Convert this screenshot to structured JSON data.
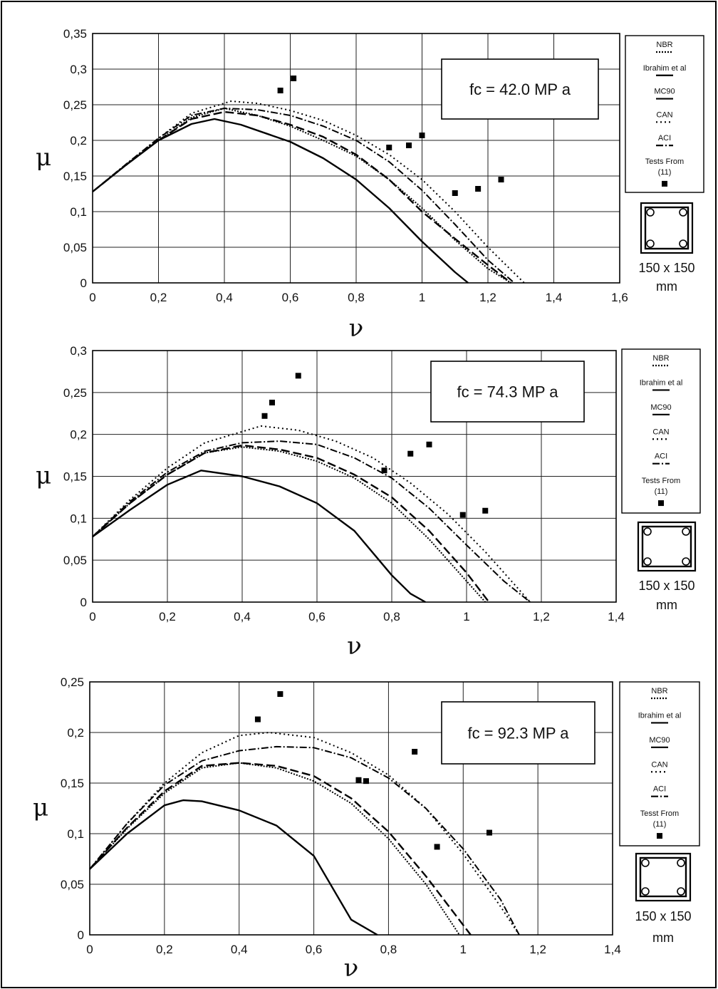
{
  "chart_data": [
    {
      "type": "line",
      "annotation": "fc = 42.0 MP a",
      "xlabel": "ν",
      "ylabel": "μ",
      "xlim": [
        0,
        1.6
      ],
      "ylim": [
        0,
        0.35
      ],
      "xticks": [
        "0",
        "0,2",
        "0,4",
        "0,6",
        "0,8",
        "1",
        "1,2",
        "1,4",
        "1,6"
      ],
      "yticks": [
        "0",
        "0,05",
        "0,1",
        "0,15",
        "0,2",
        "0,25",
        "0,3",
        "0,35"
      ],
      "grid": true,
      "legend_position": "right",
      "legend": [
        "NBR",
        "Ibrahim et al",
        "MC90",
        "CAN",
        "ACI",
        "Tests From",
        "(11)"
      ],
      "section_label": [
        "150 x 150",
        "mm"
      ],
      "series": [
        {
          "key": "nbr",
          "style": "dense-dot",
          "x": [
            0,
            0.1,
            0.2,
            0.3,
            0.4,
            0.5,
            0.6,
            0.7,
            0.8,
            0.9,
            1.0,
            1.1,
            1.2,
            1.27
          ],
          "y": [
            0.128,
            0.165,
            0.2,
            0.232,
            0.245,
            0.235,
            0.22,
            0.2,
            0.178,
            0.145,
            0.105,
            0.06,
            0.02,
            0
          ]
        },
        {
          "key": "ibrahim",
          "style": "dash-dot",
          "x": [
            0,
            0.1,
            0.2,
            0.3,
            0.4,
            0.5,
            0.6,
            0.7,
            0.8,
            0.9,
            1.0,
            1.1,
            1.2,
            1.28
          ],
          "y": [
            0.128,
            0.166,
            0.203,
            0.235,
            0.245,
            0.243,
            0.235,
            0.22,
            0.2,
            0.17,
            0.13,
            0.082,
            0.032,
            0
          ]
        },
        {
          "key": "mc90",
          "style": "solid",
          "x": [
            0,
            0.1,
            0.2,
            0.3,
            0.37,
            0.45,
            0.6,
            0.7,
            0.8,
            0.9,
            1.0,
            1.1,
            1.14
          ],
          "y": [
            0.128,
            0.165,
            0.2,
            0.223,
            0.23,
            0.222,
            0.198,
            0.175,
            0.145,
            0.105,
            0.058,
            0.015,
            0
          ]
        },
        {
          "key": "can",
          "style": "dash",
          "x": [
            0,
            0.1,
            0.2,
            0.3,
            0.4,
            0.5,
            0.6,
            0.7,
            0.8,
            0.9,
            1.0,
            1.1,
            1.2,
            1.27
          ],
          "y": [
            0.128,
            0.165,
            0.2,
            0.23,
            0.24,
            0.235,
            0.222,
            0.205,
            0.18,
            0.145,
            0.1,
            0.062,
            0.025,
            0
          ]
        },
        {
          "key": "aci",
          "style": "dot",
          "x": [
            0,
            0.1,
            0.2,
            0.3,
            0.42,
            0.5,
            0.6,
            0.7,
            0.8,
            0.9,
            1.0,
            1.1,
            1.2,
            1.31
          ],
          "y": [
            0.128,
            0.166,
            0.203,
            0.238,
            0.255,
            0.252,
            0.242,
            0.228,
            0.207,
            0.18,
            0.145,
            0.1,
            0.05,
            0
          ]
        }
      ],
      "tests": {
        "x": [
          0.57,
          0.61,
          0.9,
          0.96,
          1.0,
          1.1,
          1.17,
          1.24
        ],
        "y": [
          0.27,
          0.287,
          0.19,
          0.193,
          0.207,
          0.126,
          0.132,
          0.145
        ]
      }
    },
    {
      "type": "line",
      "annotation": "fc = 74.3 MP a",
      "xlabel": "ν",
      "ylabel": "μ",
      "xlim": [
        0,
        1.4
      ],
      "ylim": [
        0,
        0.3
      ],
      "xticks": [
        "0",
        "0,2",
        "0,4",
        "0,6",
        "0,8",
        "1",
        "1,2",
        "1,4"
      ],
      "yticks": [
        "0",
        "0,05",
        "0,1",
        "0,15",
        "0,2",
        "0,25",
        "0,3"
      ],
      "grid": true,
      "legend_position": "right",
      "legend": [
        "NBR",
        "Ibrahim et al",
        "MC90",
        "CAN",
        "ACI",
        "Tests From",
        "(11)"
      ],
      "section_label": [
        "150 x 150",
        "mm"
      ],
      "series": [
        {
          "key": "nbr",
          "style": "dense-dot",
          "x": [
            0,
            0.1,
            0.2,
            0.3,
            0.4,
            0.5,
            0.6,
            0.7,
            0.8,
            0.9,
            1.0,
            1.05
          ],
          "y": [
            0.078,
            0.118,
            0.152,
            0.178,
            0.185,
            0.18,
            0.168,
            0.148,
            0.118,
            0.075,
            0.025,
            0
          ]
        },
        {
          "key": "ibrahim",
          "style": "dash-dot",
          "x": [
            0,
            0.1,
            0.2,
            0.3,
            0.4,
            0.5,
            0.6,
            0.7,
            0.8,
            0.9,
            1.0,
            1.1,
            1.17
          ],
          "y": [
            0.078,
            0.12,
            0.155,
            0.18,
            0.19,
            0.192,
            0.188,
            0.172,
            0.148,
            0.112,
            0.068,
            0.025,
            0
          ]
        },
        {
          "key": "mc90",
          "style": "solid",
          "x": [
            0,
            0.1,
            0.2,
            0.29,
            0.4,
            0.5,
            0.6,
            0.7,
            0.8,
            0.85,
            0.89
          ],
          "y": [
            0.078,
            0.11,
            0.14,
            0.157,
            0.15,
            0.138,
            0.118,
            0.085,
            0.032,
            0.01,
            0
          ]
        },
        {
          "key": "can",
          "style": "dash",
          "x": [
            0,
            0.1,
            0.2,
            0.3,
            0.4,
            0.5,
            0.6,
            0.7,
            0.8,
            0.9,
            1.0,
            1.06
          ],
          "y": [
            0.078,
            0.118,
            0.152,
            0.178,
            0.187,
            0.182,
            0.172,
            0.152,
            0.125,
            0.085,
            0.035,
            0
          ]
        },
        {
          "key": "aci",
          "style": "dot",
          "x": [
            0,
            0.1,
            0.2,
            0.3,
            0.45,
            0.55,
            0.65,
            0.75,
            0.85,
            0.95,
            1.05,
            1.17
          ],
          "y": [
            0.078,
            0.122,
            0.16,
            0.19,
            0.21,
            0.205,
            0.192,
            0.172,
            0.142,
            0.105,
            0.06,
            0
          ]
        }
      ],
      "tests": {
        "x": [
          0.46,
          0.48,
          0.55,
          0.78,
          0.85,
          0.9,
          0.99,
          1.05
        ],
        "y": [
          0.222,
          0.238,
          0.27,
          0.157,
          0.177,
          0.188,
          0.104,
          0.109
        ]
      }
    },
    {
      "type": "line",
      "annotation": "fc = 92.3 MP a",
      "xlabel": "ν",
      "ylabel": "μ",
      "xlim": [
        0,
        1.4
      ],
      "ylim": [
        0,
        0.25
      ],
      "xticks": [
        "0",
        "0,2",
        "0,4",
        "0,6",
        "0,8",
        "1",
        "1,2",
        "1,4"
      ],
      "yticks": [
        "0",
        "0,05",
        "0,1",
        "0,15",
        "0,2",
        "0,25"
      ],
      "grid": true,
      "legend_position": "right",
      "legend": [
        "NBR",
        "Ibrahim et al",
        "MC90",
        "CAN",
        "ACI",
        "Tesst From",
        "(11)"
      ],
      "section_label": [
        "150 x 150",
        "mm"
      ],
      "series": [
        {
          "key": "nbr",
          "style": "dense-dot",
          "x": [
            0,
            0.1,
            0.2,
            0.3,
            0.4,
            0.5,
            0.6,
            0.7,
            0.8,
            0.9,
            0.99
          ],
          "y": [
            0.065,
            0.105,
            0.14,
            0.165,
            0.17,
            0.165,
            0.152,
            0.13,
            0.095,
            0.05,
            0
          ]
        },
        {
          "key": "ibrahim",
          "style": "dash-dot",
          "x": [
            0,
            0.1,
            0.2,
            0.3,
            0.4,
            0.5,
            0.6,
            0.7,
            0.8,
            0.9,
            1.0,
            1.1,
            1.15
          ],
          "y": [
            0.065,
            0.11,
            0.148,
            0.172,
            0.182,
            0.186,
            0.185,
            0.175,
            0.155,
            0.125,
            0.085,
            0.035,
            0
          ]
        },
        {
          "key": "mc90",
          "style": "solid",
          "x": [
            0,
            0.1,
            0.2,
            0.25,
            0.3,
            0.4,
            0.5,
            0.6,
            0.7,
            0.77
          ],
          "y": [
            0.065,
            0.1,
            0.128,
            0.133,
            0.132,
            0.123,
            0.108,
            0.078,
            0.015,
            0
          ]
        },
        {
          "key": "can",
          "style": "dash",
          "x": [
            0,
            0.1,
            0.2,
            0.3,
            0.4,
            0.5,
            0.6,
            0.7,
            0.8,
            0.9,
            1.02
          ],
          "y": [
            0.065,
            0.106,
            0.142,
            0.167,
            0.17,
            0.167,
            0.157,
            0.135,
            0.102,
            0.058,
            0
          ]
        },
        {
          "key": "aci",
          "style": "dot",
          "x": [
            0,
            0.1,
            0.2,
            0.3,
            0.4,
            0.48,
            0.6,
            0.7,
            0.8,
            0.9,
            1.0,
            1.1,
            1.15
          ],
          "y": [
            0.065,
            0.11,
            0.15,
            0.18,
            0.197,
            0.2,
            0.195,
            0.18,
            0.158,
            0.125,
            0.08,
            0.028,
            0
          ]
        }
      ],
      "tests": {
        "x": [
          0.45,
          0.51,
          0.72,
          0.74,
          0.87,
          0.93,
          1.07
        ],
        "y": [
          0.213,
          0.238,
          0.153,
          0.152,
          0.181,
          0.087,
          0.101
        ]
      }
    }
  ]
}
